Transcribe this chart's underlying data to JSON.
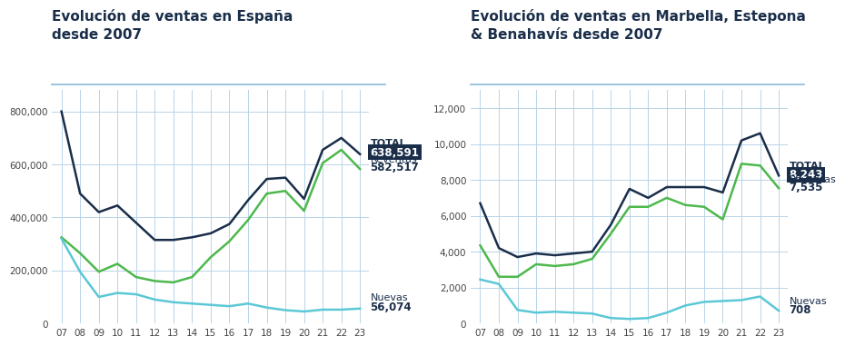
{
  "title1": "Evolución de ventas en España\ndesde 2007",
  "title2": "Evolución de ventas en Marbella, Estepona\n& Benahavís desde 2007",
  "years": [
    "07",
    "08",
    "09",
    "10",
    "11",
    "12",
    "13",
    "14",
    "15",
    "16",
    "17",
    "18",
    "19",
    "20",
    "21",
    "22",
    "23"
  ],
  "spain_total": [
    800000,
    490000,
    420000,
    445000,
    380000,
    315000,
    315000,
    325000,
    340000,
    375000,
    465000,
    545000,
    550000,
    470000,
    655000,
    700000,
    638591
  ],
  "spain_reventas": [
    325000,
    265000,
    195000,
    225000,
    175000,
    160000,
    155000,
    175000,
    250000,
    310000,
    390000,
    490000,
    500000,
    425000,
    605000,
    655000,
    582517
  ],
  "spain_nuevas": [
    320000,
    195000,
    100000,
    115000,
    110000,
    90000,
    80000,
    75000,
    70000,
    65000,
    75000,
    60000,
    50000,
    45000,
    52000,
    52000,
    56074
  ],
  "marbella_total": [
    6700,
    4200,
    3700,
    3900,
    3800,
    3900,
    4000,
    5500,
    7500,
    7000,
    7600,
    7600,
    7600,
    7300,
    10200,
    10600,
    8243
  ],
  "marbella_reventas": [
    4350,
    2600,
    2600,
    3300,
    3200,
    3300,
    3600,
    5000,
    6500,
    6500,
    7000,
    6600,
    6500,
    5800,
    8900,
    8800,
    7535
  ],
  "marbella_nuevas": [
    2450,
    2200,
    750,
    600,
    650,
    600,
    550,
    300,
    250,
    300,
    600,
    1000,
    1200,
    1250,
    1300,
    1500,
    708
  ],
  "color_total": "#1a2e4a",
  "color_reventas": "#4db84d",
  "color_nuevas": "#5bc8d5",
  "grid_color": "#b8d4e8",
  "bg_color": "#ffffff",
  "box_color": "#1a2e4a",
  "white": "#ffffff",
  "dark": "#1a2e4a",
  "sep_line_color": "#8ab8d8",
  "title_fontsize": 11,
  "tick_fontsize": 7.5,
  "ann_fontsize": 8,
  "ann_val_fontsize": 8.5
}
